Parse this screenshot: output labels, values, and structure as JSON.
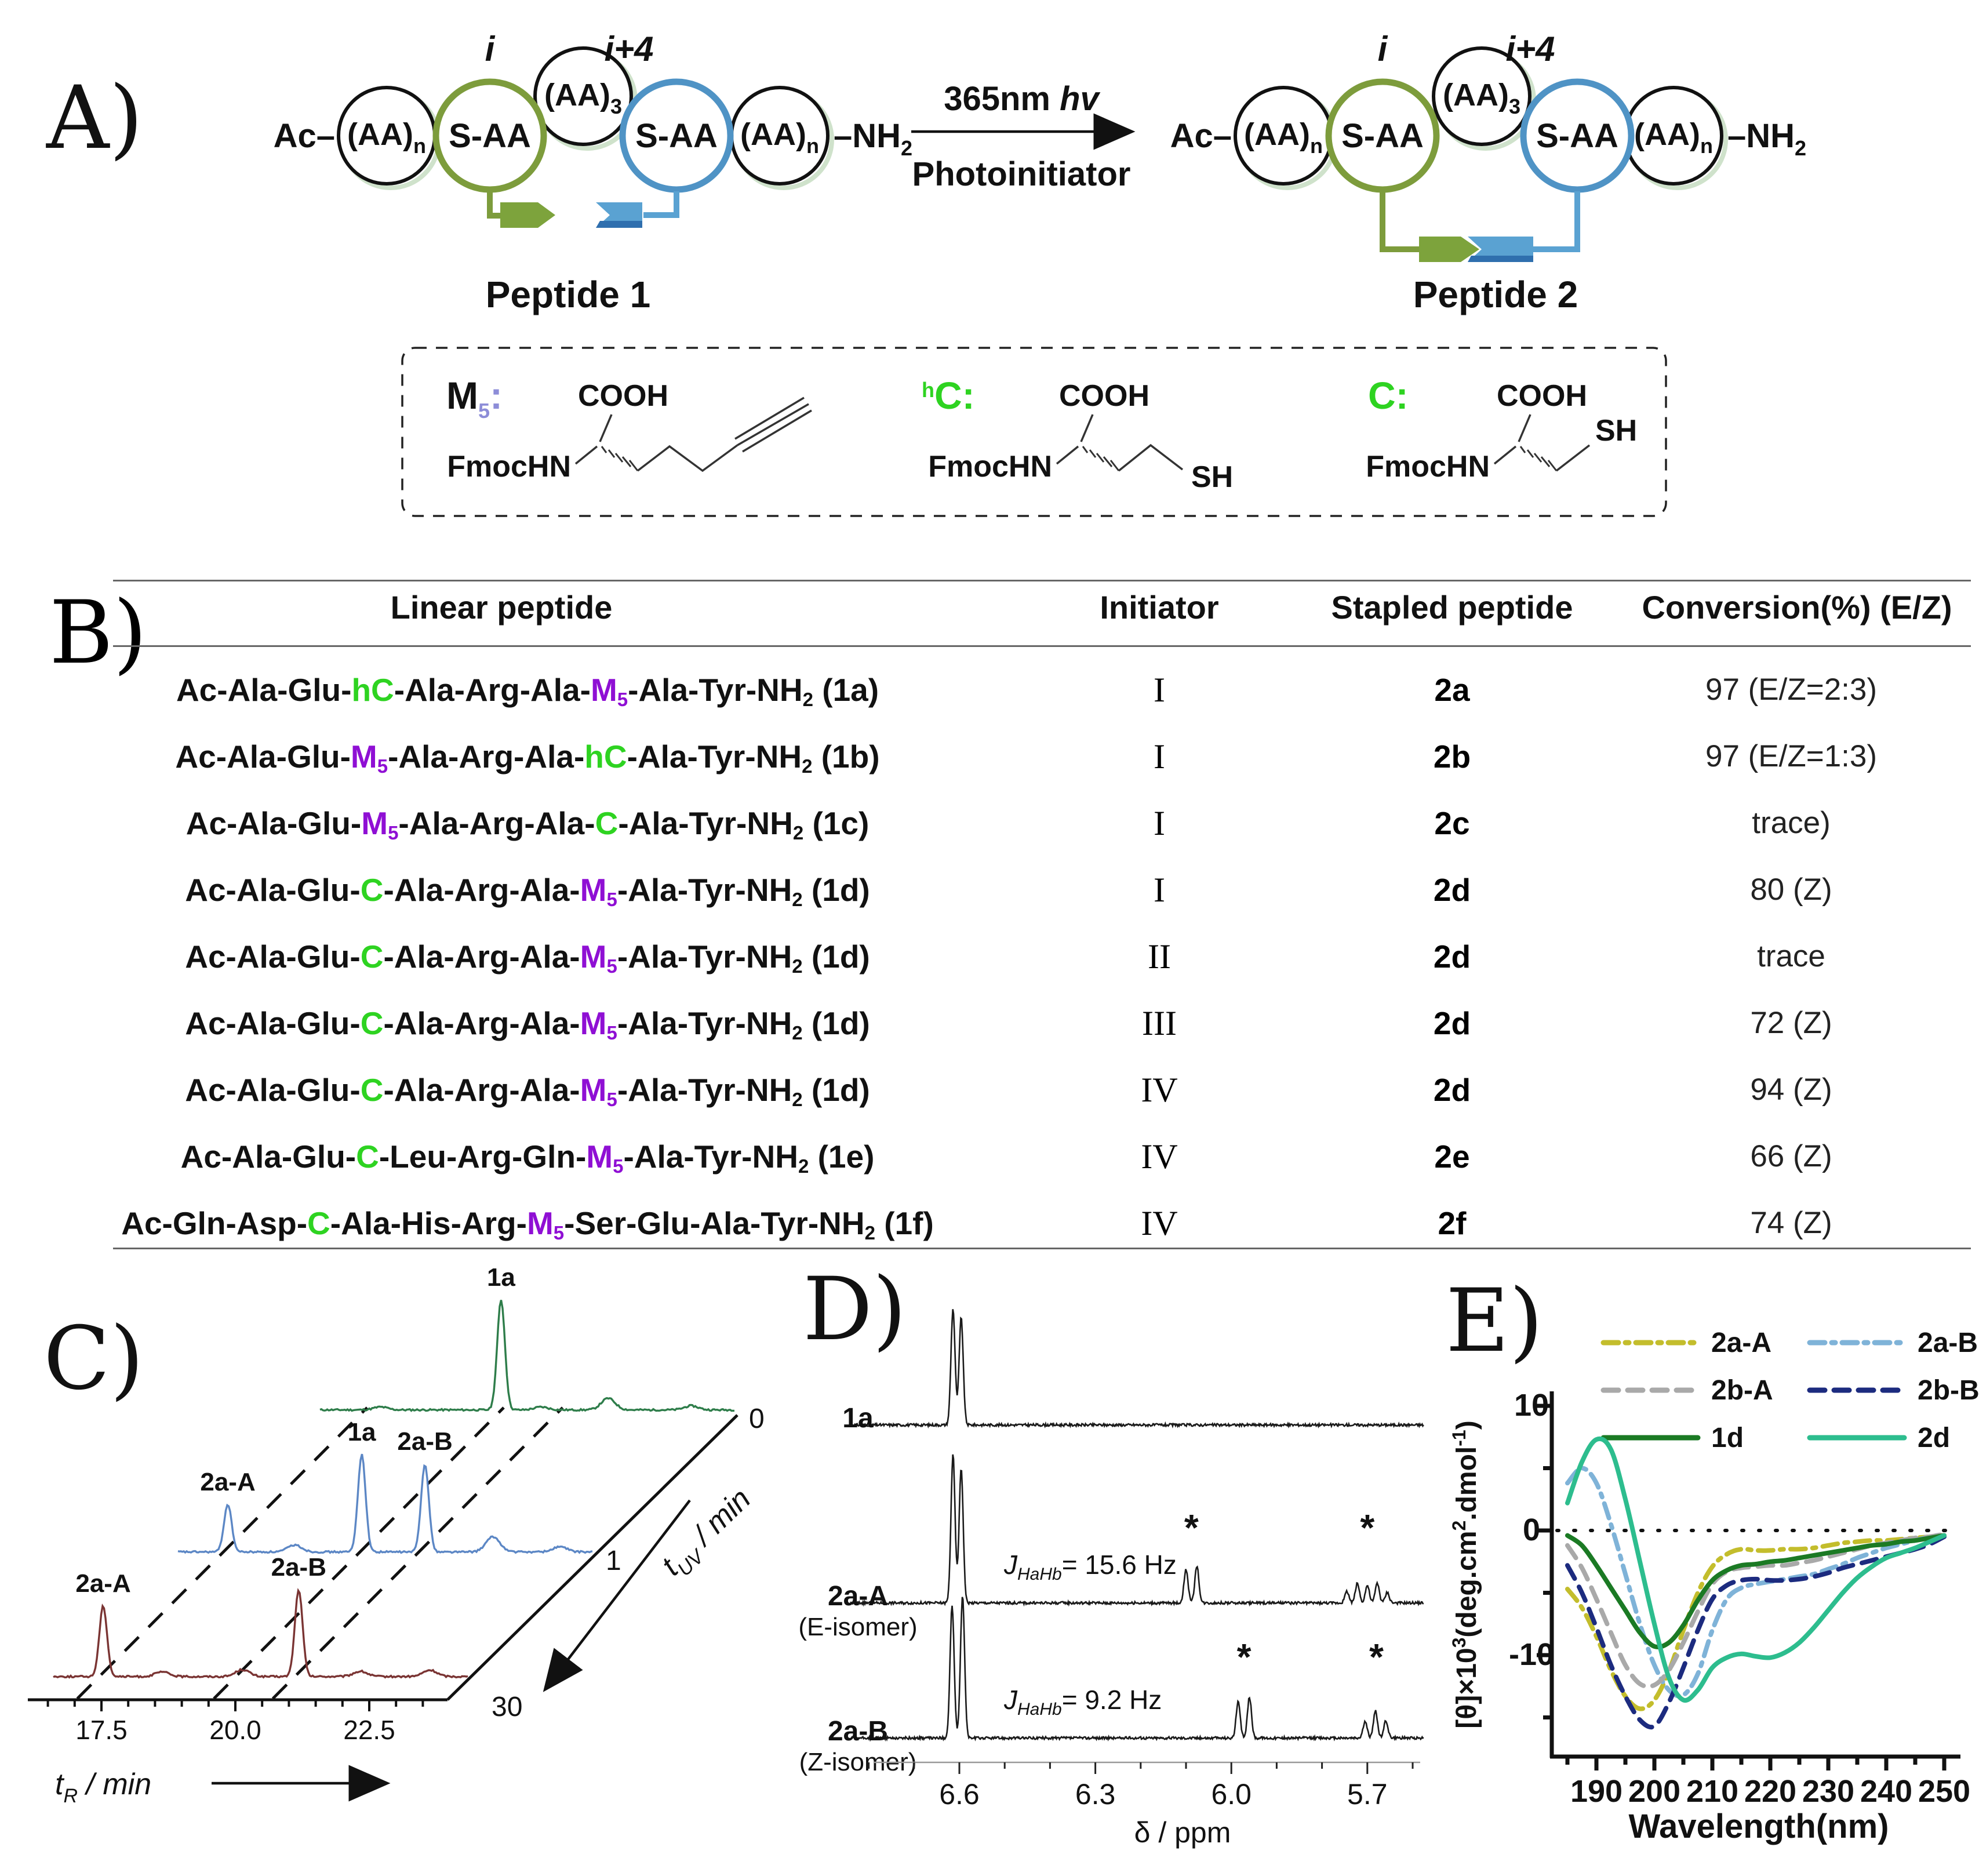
{
  "panel_labels": {
    "a": "A)",
    "b": "B)",
    "c": "C)",
    "d": "D)",
    "e": "E)"
  },
  "scheme": {
    "ac": "Ac–",
    "aa": "(AA)",
    "sub_n": "n",
    "sub_3": "3",
    "saa": "S-AA",
    "nh": "–NH",
    "sub_2": "2",
    "i": "i",
    "i_plus_4": "i+4",
    "light": "365nm ",
    "hv": "hv",
    "photoinitiator": "Photoinitiator",
    "peptide1": "Peptide 1",
    "peptide2": "Peptide 2",
    "colors": {
      "staple_green": "#7da33c",
      "staple_blue": "#5aa2d2",
      "staple_blue_dark": "#2f6fae",
      "circle_green": "#7d9c3c",
      "circle_blue": "#4f93c5"
    },
    "monomers": {
      "m5": {
        "label": "M",
        "sub": "5",
        "colon": ":",
        "color": "#8d8dd8",
        "cooh": "COOH",
        "amine": "FmocHN"
      },
      "hc": {
        "sup": "h",
        "label": "C",
        "colon": ":",
        "color": "#2ed321",
        "cooh": "COOH",
        "amine": "FmocHN",
        "thiol": "SH"
      },
      "c": {
        "label": "C",
        "colon": ":",
        "color": "#2ed321",
        "cooh": "COOH",
        "amine": "FmocHN",
        "thiol": "SH"
      }
    }
  },
  "table": {
    "headers": [
      "Linear peptide",
      "Initiator",
      "Stapled peptide",
      "Conversion(%) (E/Z)"
    ],
    "rows": [
      {
        "seq": [
          [
            "Ac-Ala-Glu-",
            "k"
          ],
          [
            "hC",
            "g"
          ],
          [
            "-Ala-Arg-Ala-",
            "k"
          ],
          [
            "M",
            "p"
          ],
          [
            "5",
            "p",
            1
          ],
          [
            "-Ala-Tyr-NH",
            "k"
          ],
          [
            "2",
            "k",
            1
          ],
          [
            " (1a)",
            "k"
          ]
        ],
        "initiator": "I",
        "stapled": "2a",
        "conversion": "97 (E/Z=2:3)"
      },
      {
        "seq": [
          [
            "Ac-Ala-Glu-",
            "k"
          ],
          [
            "M",
            "p"
          ],
          [
            "5",
            "p",
            1
          ],
          [
            "-Ala-Arg-Ala-",
            "k"
          ],
          [
            "hC",
            "g"
          ],
          [
            "-Ala-Tyr-NH",
            "k"
          ],
          [
            "2",
            "k",
            1
          ],
          [
            " (1b)",
            "k"
          ]
        ],
        "initiator": "I",
        "stapled": "2b",
        "conversion": "97 (E/Z=1:3)"
      },
      {
        "seq": [
          [
            "Ac-Ala-Glu-",
            "k"
          ],
          [
            "M",
            "p"
          ],
          [
            "5",
            "p",
            1
          ],
          [
            "-Ala-Arg-Ala-",
            "k"
          ],
          [
            "C",
            "g"
          ],
          [
            "-Ala-Tyr-NH",
            "k"
          ],
          [
            "2",
            "k",
            1
          ],
          [
            " (1c)",
            "k"
          ]
        ],
        "initiator": "I",
        "stapled": "2c",
        "conversion": "trace)"
      },
      {
        "seq": [
          [
            "Ac-Ala-Glu-",
            "k"
          ],
          [
            "C",
            "g"
          ],
          [
            "-Ala-Arg-Ala-",
            "k"
          ],
          [
            "M",
            "p"
          ],
          [
            "5",
            "p",
            1
          ],
          [
            "-Ala-Tyr-NH",
            "k"
          ],
          [
            "2",
            "k",
            1
          ],
          [
            " (1d)",
            "k"
          ]
        ],
        "initiator": "I",
        "stapled": "2d",
        "conversion": "80 (Z)"
      },
      {
        "seq": [
          [
            "Ac-Ala-Glu-",
            "k"
          ],
          [
            "C",
            "g"
          ],
          [
            "-Ala-Arg-Ala-",
            "k"
          ],
          [
            "M",
            "p"
          ],
          [
            "5",
            "p",
            1
          ],
          [
            "-Ala-Tyr-NH",
            "k"
          ],
          [
            "2",
            "k",
            1
          ],
          [
            " (1d)",
            "k"
          ]
        ],
        "initiator": "II",
        "stapled": "2d",
        "conversion": "trace"
      },
      {
        "seq": [
          [
            "Ac-Ala-Glu-",
            "k"
          ],
          [
            "C",
            "g"
          ],
          [
            "-Ala-Arg-Ala-",
            "k"
          ],
          [
            "M",
            "p"
          ],
          [
            "5",
            "p",
            1
          ],
          [
            "-Ala-Tyr-NH",
            "k"
          ],
          [
            "2",
            "k",
            1
          ],
          [
            " (1d)",
            "k"
          ]
        ],
        "initiator": "III",
        "stapled": "2d",
        "conversion": "72 (Z)"
      },
      {
        "seq": [
          [
            "Ac-Ala-Glu-",
            "k"
          ],
          [
            "C",
            "g"
          ],
          [
            "-Ala-Arg-Ala-",
            "k"
          ],
          [
            "M",
            "p"
          ],
          [
            "5",
            "p",
            1
          ],
          [
            "-Ala-Tyr-NH",
            "k"
          ],
          [
            "2",
            "k",
            1
          ],
          [
            " (1d)",
            "k"
          ]
        ],
        "initiator": "IV",
        "stapled": "2d",
        "conversion": "94 (Z)"
      },
      {
        "seq": [
          [
            "Ac-Ala-Glu-",
            "k"
          ],
          [
            "C",
            "g"
          ],
          [
            "-Leu-Arg-Gln-",
            "k"
          ],
          [
            "M",
            "p"
          ],
          [
            "5",
            "p",
            1
          ],
          [
            "-Ala-Tyr-NH",
            "k"
          ],
          [
            "2",
            "k",
            1
          ],
          [
            " (1e)",
            "k"
          ]
        ],
        "initiator": "IV",
        "stapled": "2e",
        "conversion": "66 (Z)"
      },
      {
        "seq": [
          [
            "Ac-Gln-Asp-",
            "k"
          ],
          [
            "C",
            "g"
          ],
          [
            "-Ala-His-Arg-",
            "k"
          ],
          [
            "M",
            "p"
          ],
          [
            "5",
            "p",
            1
          ],
          [
            "-Ser-Glu-Ala-Tyr-NH",
            "k"
          ],
          [
            "2",
            "k",
            1
          ],
          [
            " (1f)",
            "k"
          ]
        ],
        "initiator": "IV",
        "stapled": "2f",
        "conversion": "74 (Z)"
      }
    ]
  },
  "chart_data": [
    {
      "id": "hplc",
      "type": "line",
      "panel": "C",
      "xlabel": {
        "main": "t",
        "sub": "R",
        "rest": " / min"
      },
      "depth_label": {
        "main": "t",
        "sub": "UV",
        "rest": " / min"
      },
      "x_ticks": [
        "17.5",
        "20.0",
        "22.5"
      ],
      "x_tick_values": [
        17.5,
        20.0,
        22.5
      ],
      "x_range": [
        16.2,
        23.9
      ],
      "depth_ticks": [
        "0",
        "1",
        "30"
      ],
      "traces": [
        {
          "t_uv": "0",
          "color": "#2e7d4a",
          "peaks": [
            {
              "t": 17.3,
              "h": 5
            },
            {
              "t": 19.55,
              "h": 190,
              "label": "1a"
            },
            {
              "t": 20.3,
              "h": 5
            },
            {
              "t": 21.55,
              "h": 20
            },
            {
              "t": 23.1,
              "h": 7
            }
          ]
        },
        {
          "t_uv": "1",
          "color": "#5c87c5",
          "peaks": [
            {
              "t": 17.1,
              "h": 82,
              "label": "2a-A"
            },
            {
              "t": 18.35,
              "h": 12
            },
            {
              "t": 19.6,
              "h": 168,
              "label": "1a"
            },
            {
              "t": 20.78,
              "h": 152,
              "label": "2a-B"
            },
            {
              "t": 22.05,
              "h": 26
            },
            {
              "t": 23.3,
              "h": 9
            }
          ]
        },
        {
          "t_uv": "30",
          "color": "#7a3433",
          "peaks": [
            {
              "t": 17.1,
              "h": 122,
              "label": "2a-A"
            },
            {
              "t": 18.2,
              "h": 8
            },
            {
              "t": 19.7,
              "h": 12
            },
            {
              "t": 20.75,
              "h": 150,
              "label": "2a-B"
            },
            {
              "t": 21.9,
              "h": 9
            },
            {
              "t": 23.2,
              "h": 11
            }
          ]
        }
      ],
      "guide_times": [
        17.05,
        19.6,
        20.7
      ]
    },
    {
      "id": "nmr",
      "type": "line",
      "panel": "D",
      "xlabel": "δ / ppm",
      "x_ticks": [
        "6.6",
        "6.3",
        "6.0",
        "5.7"
      ],
      "x_tick_values": [
        6.6,
        6.3,
        6.0,
        5.7
      ],
      "traces": [
        {
          "name": "1a",
          "baseline": 298,
          "peaks": [
            [
              6.614,
              200
            ],
            [
              6.596,
              185
            ]
          ],
          "asterisks": []
        },
        {
          "name": "2a-A",
          "isomer": "(E-isomer)",
          "baseline": 605,
          "j_label": {
            "j": "J",
            "sub": "HaHb",
            "value": "= 15.6 Hz"
          },
          "peaks": [
            [
              6.614,
              255
            ],
            [
              6.596,
              232
            ],
            [
              6.1,
              58
            ],
            [
              6.076,
              64
            ],
            [
              5.745,
              20
            ],
            [
              5.722,
              34
            ],
            [
              5.7,
              30
            ],
            [
              5.678,
              34
            ],
            [
              5.656,
              18
            ]
          ],
          "asterisks": [
            [
              6.088,
              108
            ],
            [
              5.7,
              108
            ]
          ]
        },
        {
          "name": "2a-B",
          "isomer": "(Z-isomer)",
          "baseline": 838,
          "j_label": {
            "j": "J",
            "sub": "HaHb",
            "value": "= 9.2 Hz"
          },
          "peaks": [
            [
              6.616,
              228
            ],
            [
              6.593,
              246
            ],
            [
              5.985,
              62
            ],
            [
              5.96,
              70
            ],
            [
              5.705,
              28
            ],
            [
              5.682,
              46
            ],
            [
              5.659,
              30
            ]
          ],
          "asterisks": [
            [
              5.972,
              118
            ],
            [
              5.68,
              118
            ]
          ]
        }
      ]
    },
    {
      "id": "cd",
      "type": "line",
      "panel": "E",
      "xlabel": "Wavelength(nm)",
      "ylabel": {
        "p1": "[θ]×10",
        "s1": "3",
        "p2": "(deg.cm",
        "s2": "2",
        "p3": ".dmol",
        "s3": "-1",
        "p4": ")"
      },
      "x_start": 185,
      "x_step": 2.5,
      "xlim": [
        185,
        250
      ],
      "ylim": [
        -18,
        10.5
      ],
      "x_ticks": [
        190,
        200,
        210,
        220,
        230,
        240,
        250
      ],
      "y_ticks": [
        10,
        0,
        -10
      ],
      "grid": false,
      "legend_position": "top",
      "series": [
        {
          "name": "2a-A",
          "color": "#c3bd2c",
          "style": "dashdot",
          "values": [
            -4.7,
            -6.2,
            -8.5,
            -11.2,
            -13.3,
            -14.3,
            -13.6,
            -11.3,
            -8.0,
            -5.0,
            -2.9,
            -1.9,
            -1.5,
            -1.6,
            -1.6,
            -1.5,
            -1.5,
            -1.4,
            -1.2,
            -1.0,
            -0.9,
            -0.8,
            -0.8,
            -0.7,
            -0.6,
            -0.5,
            -0.4
          ]
        },
        {
          "name": "2a-B",
          "color": "#7fb3d8",
          "style": "dashdot",
          "values": [
            3.8,
            5.0,
            3.8,
            0.5,
            -3.5,
            -7.5,
            -10.8,
            -12.8,
            -13.2,
            -11.5,
            -8.0,
            -5.5,
            -4.6,
            -4.3,
            -4.1,
            -3.9,
            -3.7,
            -3.5,
            -3.1,
            -2.7,
            -2.2,
            -1.8,
            -1.4,
            -1.1,
            -0.8,
            -0.5,
            -0.3
          ]
        },
        {
          "name": "2b-A",
          "color": "#a9a9a9",
          "style": "dash",
          "values": [
            -1.2,
            -3.0,
            -5.5,
            -8.2,
            -10.8,
            -12.3,
            -12.4,
            -11.2,
            -9.0,
            -6.5,
            -4.3,
            -3.3,
            -3.0,
            -2.9,
            -2.8,
            -2.8,
            -2.6,
            -2.4,
            -2.1,
            -1.8,
            -1.5,
            -1.2,
            -1.0,
            -0.8,
            -0.6,
            -0.5,
            -0.3
          ]
        },
        {
          "name": "2b-B",
          "color": "#1c2b7f",
          "style": "dash",
          "values": [
            -2.8,
            -5.0,
            -7.8,
            -10.8,
            -13.3,
            -15.2,
            -15.7,
            -13.8,
            -11.0,
            -8.0,
            -5.5,
            -4.4,
            -4.0,
            -3.9,
            -4.0,
            -4.0,
            -3.9,
            -3.7,
            -3.4,
            -3.0,
            -2.7,
            -2.4,
            -2.1,
            -1.8,
            -1.5,
            -1.1,
            -0.5
          ]
        },
        {
          "name": "1d",
          "color": "#1b7a24",
          "style": "solid",
          "values": [
            -0.4,
            -1.2,
            -2.8,
            -4.6,
            -6.4,
            -8.2,
            -9.3,
            -9.0,
            -7.6,
            -5.6,
            -4.0,
            -3.2,
            -2.8,
            -2.7,
            -2.5,
            -2.4,
            -2.2,
            -2.0,
            -1.8,
            -1.6,
            -1.4,
            -1.2,
            -1.1,
            -0.9,
            -0.8,
            -0.6,
            -0.4
          ]
        },
        {
          "name": "2d",
          "color": "#2dbd8e",
          "style": "solid",
          "values": [
            2.2,
            5.5,
            7.3,
            6.5,
            2.5,
            -2.5,
            -7.5,
            -11.8,
            -13.6,
            -12.8,
            -11.0,
            -10.2,
            -9.9,
            -10.1,
            -10.2,
            -9.8,
            -9.0,
            -7.8,
            -6.4,
            -5.0,
            -3.8,
            -2.9,
            -2.2,
            -1.8,
            -1.4,
            -0.9,
            -0.4
          ]
        }
      ]
    }
  ]
}
